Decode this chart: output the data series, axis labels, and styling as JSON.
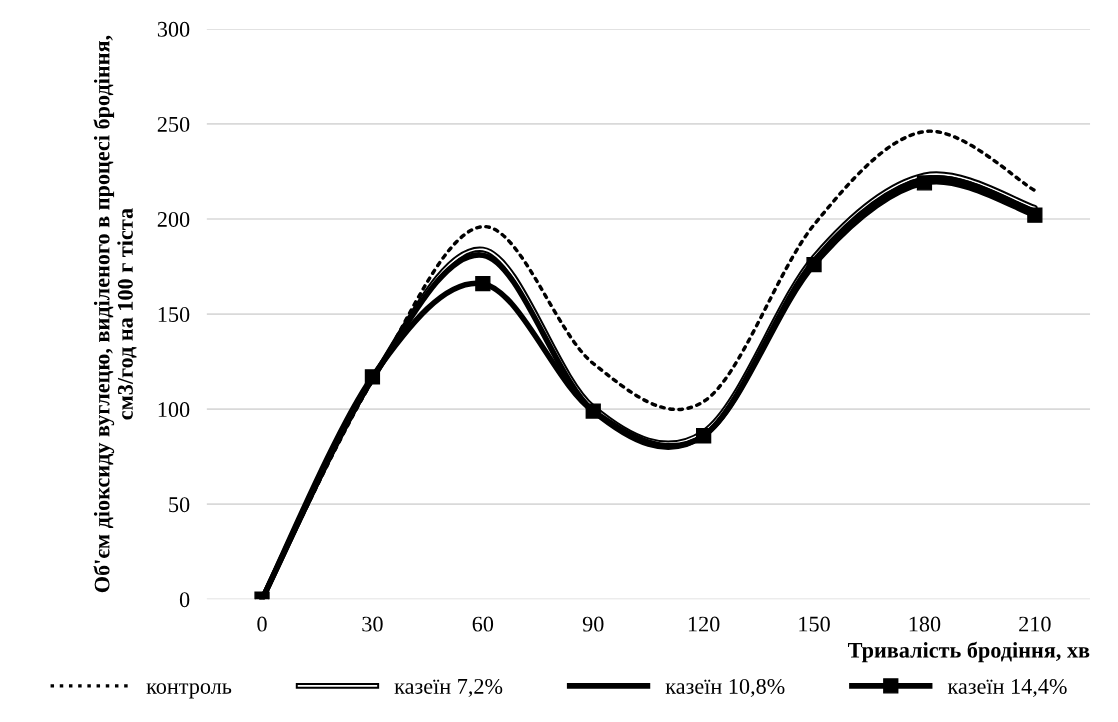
{
  "chart_data": {
    "type": "line",
    "xlabel": "Тривалість бродіння, хв",
    "ylabel": "Об'єм діоксиду вуглецю, виділеного в процесі бродіння, см3/год на 100 г тіста",
    "categories": [
      "0",
      "30",
      "60",
      "90",
      "120",
      "150",
      "180",
      "210"
    ],
    "series": [
      {
        "name": "контроль",
        "color": "#000000",
        "line_style": "dotted",
        "marker": "none",
        "values": [
          0,
          115,
          196,
          124,
          104,
          197,
          246,
          215
        ]
      },
      {
        "name": "казеїн 7,2%",
        "color": "#000000",
        "line_style": "solid",
        "marker": "none",
        "values": [
          0,
          116,
          184,
          101,
          88,
          180,
          223,
          206
        ]
      },
      {
        "name": "казеїн 10,8%",
        "color": "#000000",
        "line_style": "solid",
        "marker": "none",
        "values": [
          0,
          116,
          181,
          99,
          86,
          178,
          221,
          204
        ]
      },
      {
        "name": "казеїн 14,4%",
        "color": "#000000",
        "line_style": "solid",
        "marker": "square",
        "values": [
          0,
          117,
          166,
          99,
          86,
          176,
          219,
          202
        ]
      }
    ],
    "ylim": [
      0,
      300
    ],
    "yticks": [
      0,
      50,
      100,
      150,
      200,
      250,
      300
    ],
    "grid": "y",
    "legend": "bottom"
  }
}
